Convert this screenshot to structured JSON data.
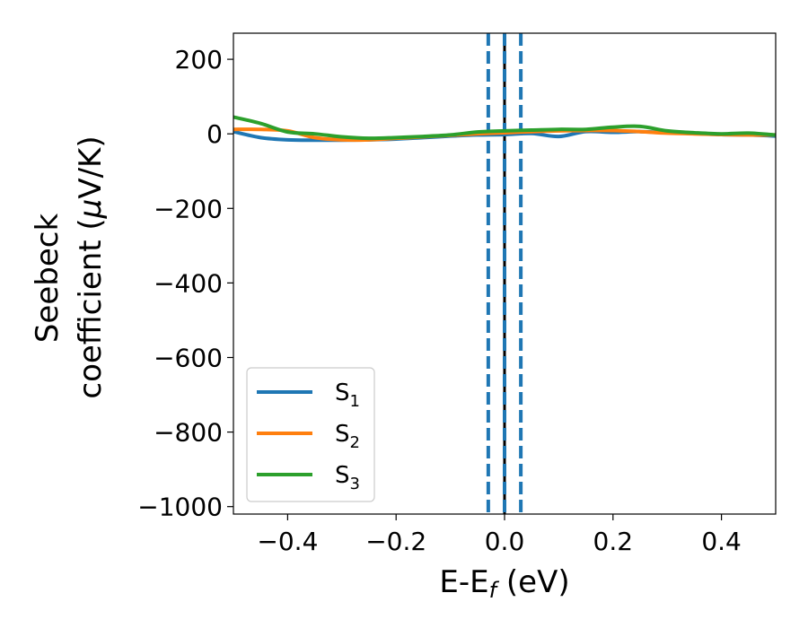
{
  "chart_data": {
    "type": "line",
    "xlabel_main": "E-E",
    "xlabel_sub": "f",
    "xlabel_unit": " (eV)",
    "ylabel_line1": "Seebeck",
    "ylabel_line2": "coefficient  (",
    "ylabel_mu": "μ",
    "ylabel_unit": "V/K)",
    "xlim": [
      -0.5,
      0.5
    ],
    "ylim": [
      -1020,
      270
    ],
    "xticks": [
      {
        "value": -0.4,
        "label": "−0.4"
      },
      {
        "value": -0.2,
        "label": "−0.2"
      },
      {
        "value": 0.0,
        "label": "0.0"
      },
      {
        "value": 0.2,
        "label": "0.2"
      },
      {
        "value": 0.4,
        "label": "0.4"
      }
    ],
    "yticks": [
      {
        "value": 200,
        "label": "200"
      },
      {
        "value": 0,
        "label": "0"
      },
      {
        "value": -200,
        "label": "−200"
      },
      {
        "value": -400,
        "label": "−400"
      },
      {
        "value": -600,
        "label": "−600"
      },
      {
        "value": -800,
        "label": "−800"
      },
      {
        "value": -1000,
        "label": "−1000"
      }
    ],
    "vlines": [
      {
        "x": 0.0,
        "color": "#000000",
        "style": "solid"
      },
      {
        "x": -0.03,
        "color": "#1f77b4",
        "style": "dashed"
      },
      {
        "x": 0.0,
        "color": "#1f77b4",
        "style": "dashed"
      },
      {
        "x": 0.03,
        "color": "#1f77b4",
        "style": "dashed"
      }
    ],
    "legend_position": "lower-left",
    "series": [
      {
        "name": "S",
        "sub": "1",
        "color": "#1f77b4",
        "x": [
          -0.5,
          -0.45,
          -0.4,
          -0.35,
          -0.3,
          -0.25,
          -0.2,
          -0.15,
          -0.1,
          -0.05,
          0.0,
          0.05,
          0.1,
          0.15,
          0.2,
          0.25,
          0.3,
          0.35,
          0.4,
          0.45,
          0.5
        ],
        "y": [
          6,
          -10,
          -16,
          -17,
          -17,
          -16,
          -14,
          -10,
          -6,
          -3,
          -2,
          1,
          -7,
          6,
          4,
          6,
          3,
          1,
          -2,
          -3,
          -6
        ]
      },
      {
        "name": "S",
        "sub": "2",
        "color": "#ff7f0e",
        "x": [
          -0.5,
          -0.45,
          -0.4,
          -0.35,
          -0.3,
          -0.25,
          -0.2,
          -0.15,
          -0.1,
          -0.05,
          0.0,
          0.05,
          0.1,
          0.15,
          0.2,
          0.25,
          0.3,
          0.35,
          0.4,
          0.45,
          0.5
        ],
        "y": [
          12,
          12,
          8,
          -10,
          -16,
          -16,
          -12,
          -8,
          -4,
          0,
          3,
          6,
          8,
          9,
          9,
          6,
          2,
          0,
          -2,
          -3,
          -3
        ]
      },
      {
        "name": "S",
        "sub": "3",
        "color": "#2ca02c",
        "x": [
          -0.5,
          -0.45,
          -0.4,
          -0.35,
          -0.3,
          -0.25,
          -0.2,
          -0.15,
          -0.1,
          -0.05,
          0.0,
          0.05,
          0.1,
          0.15,
          0.2,
          0.25,
          0.3,
          0.35,
          0.4,
          0.45,
          0.5
        ],
        "y": [
          45,
          28,
          5,
          0,
          -8,
          -12,
          -10,
          -7,
          -3,
          5,
          8,
          10,
          12,
          12,
          18,
          20,
          8,
          3,
          0,
          2,
          -3
        ]
      }
    ]
  }
}
